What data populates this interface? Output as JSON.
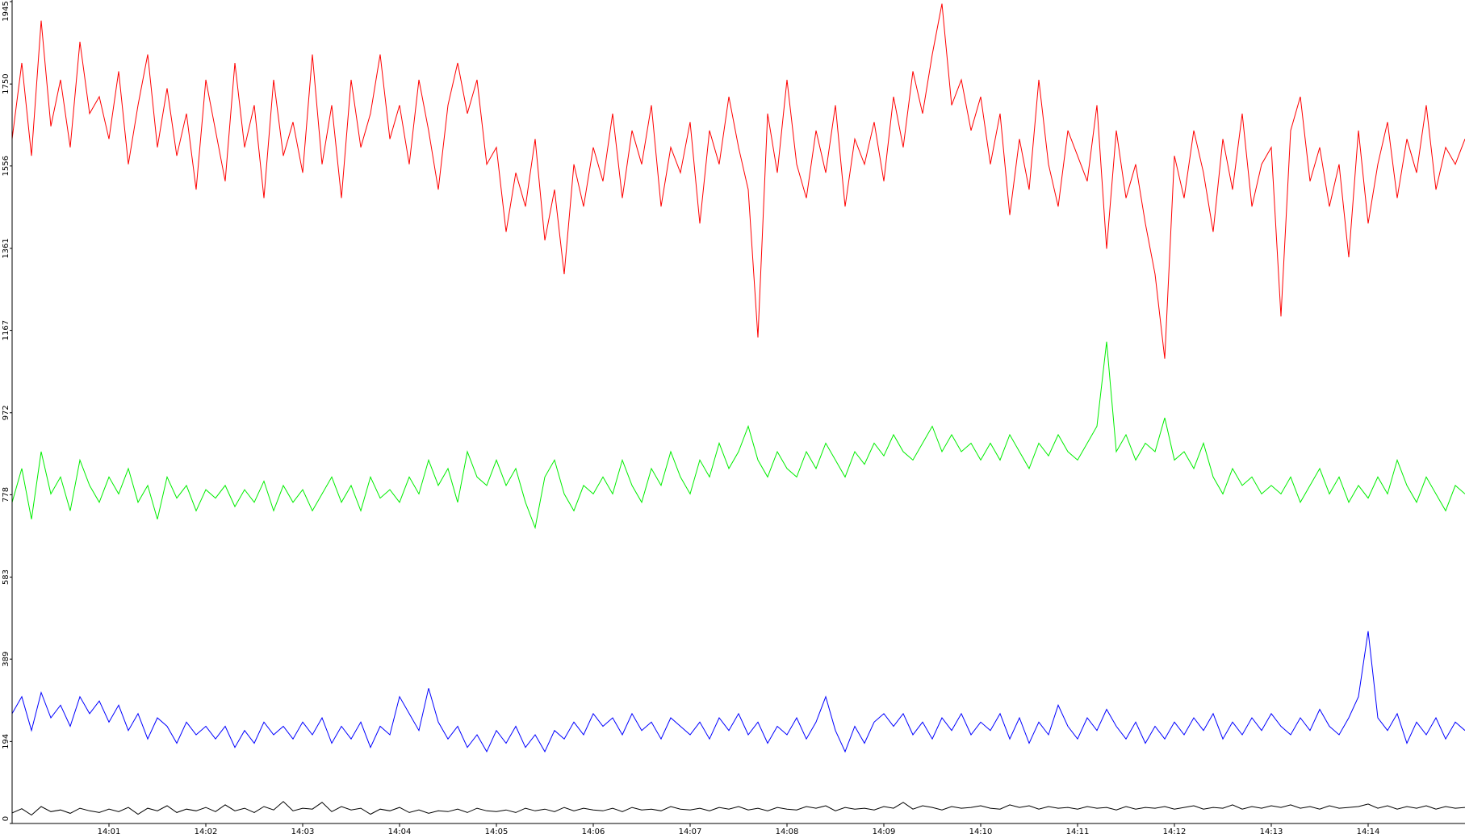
{
  "chart_data": {
    "type": "line",
    "x": [
      0,
      0.1,
      0.2,
      0.3,
      0.4,
      0.5,
      0.6,
      0.7,
      0.8,
      0.9,
      1,
      1.1,
      1.2,
      1.3,
      1.4,
      1.5,
      1.6,
      1.7,
      1.8,
      1.9,
      2,
      2.1,
      2.2,
      2.3,
      2.4,
      2.5,
      2.6,
      2.7,
      2.8,
      2.9,
      3,
      3.1,
      3.2,
      3.3,
      3.4,
      3.5,
      3.6,
      3.7,
      3.8,
      3.9,
      4,
      4.1,
      4.2,
      4.3,
      4.4,
      4.5,
      4.6,
      4.7,
      4.8,
      4.9,
      5,
      5.1,
      5.2,
      5.3,
      5.4,
      5.5,
      5.6,
      5.7,
      5.8,
      5.9,
      6,
      6.1,
      6.2,
      6.3,
      6.4,
      6.5,
      6.6,
      6.7,
      6.8,
      6.9,
      7,
      7.1,
      7.2,
      7.3,
      7.4,
      7.5,
      7.6,
      7.7,
      7.8,
      7.9,
      8,
      8.1,
      8.2,
      8.3,
      8.4,
      8.5,
      8.6,
      8.7,
      8.8,
      8.9,
      9,
      9.1,
      9.2,
      9.3,
      9.4,
      9.5,
      9.6,
      9.7,
      9.8,
      9.9,
      10,
      10.1,
      10.2,
      10.3,
      10.4,
      10.5,
      10.6,
      10.7,
      10.8,
      10.9,
      11,
      11.1,
      11.2,
      11.3,
      11.4,
      11.5,
      11.6,
      11.7,
      11.8,
      11.9,
      12,
      12.1,
      12.2,
      12.3,
      12.4,
      12.5,
      12.6,
      12.7,
      12.8,
      12.9,
      13,
      13.1,
      13.2,
      13.3,
      13.4,
      13.5,
      13.6,
      13.7,
      13.8,
      13.9,
      14,
      14.1,
      14.2,
      14.3,
      14.4,
      14.5,
      14.6,
      14.7,
      14.8,
      14.9,
      15
    ],
    "series": [
      {
        "color": "#ff0000",
        "values": [
          1620,
          1800,
          1580,
          1900,
          1650,
          1760,
          1600,
          1850,
          1680,
          1720,
          1620,
          1780,
          1560,
          1700,
          1820,
          1600,
          1740,
          1580,
          1680,
          1500,
          1760,
          1640,
          1520,
          1800,
          1600,
          1700,
          1480,
          1760,
          1580,
          1660,
          1540,
          1820,
          1560,
          1700,
          1480,
          1760,
          1600,
          1680,
          1820,
          1620,
          1700,
          1560,
          1760,
          1640,
          1500,
          1700,
          1800,
          1680,
          1760,
          1560,
          1600,
          1400,
          1540,
          1460,
          1620,
          1380,
          1500,
          1300,
          1560,
          1460,
          1600,
          1520,
          1680,
          1480,
          1640,
          1560,
          1700,
          1460,
          1600,
          1540,
          1660,
          1420,
          1640,
          1560,
          1720,
          1600,
          1500,
          1150,
          1680,
          1540,
          1760,
          1560,
          1480,
          1640,
          1540,
          1700,
          1460,
          1620,
          1560,
          1660,
          1520,
          1720,
          1600,
          1780,
          1680,
          1820,
          1940,
          1700,
          1760,
          1640,
          1720,
          1560,
          1680,
          1440,
          1620,
          1500,
          1760,
          1560,
          1460,
          1640,
          1580,
          1520,
          1700,
          1360,
          1640,
          1480,
          1560,
          1420,
          1300,
          1100,
          1580,
          1480,
          1640,
          1540,
          1400,
          1620,
          1500,
          1680,
          1460,
          1560,
          1600,
          1200,
          1640,
          1720,
          1520,
          1600,
          1460,
          1560,
          1340,
          1640,
          1420,
          1560,
          1660,
          1480,
          1620,
          1540,
          1700,
          1500,
          1600,
          1560,
          1620
        ]
      },
      {
        "color": "#00ee00",
        "values": [
          760,
          840,
          720,
          880,
          780,
          820,
          740,
          860,
          800,
          760,
          820,
          780,
          840,
          760,
          800,
          720,
          820,
          770,
          800,
          740,
          790,
          770,
          800,
          750,
          790,
          760,
          810,
          740,
          800,
          760,
          790,
          740,
          780,
          820,
          760,
          800,
          740,
          820,
          770,
          790,
          760,
          820,
          780,
          860,
          800,
          840,
          760,
          880,
          820,
          800,
          860,
          800,
          840,
          760,
          700,
          820,
          860,
          780,
          740,
          800,
          780,
          820,
          780,
          860,
          800,
          760,
          840,
          800,
          880,
          820,
          780,
          860,
          820,
          900,
          840,
          880,
          940,
          860,
          820,
          880,
          840,
          820,
          880,
          840,
          900,
          860,
          820,
          880,
          850,
          900,
          870,
          920,
          880,
          860,
          900,
          940,
          880,
          920,
          880,
          900,
          860,
          900,
          860,
          920,
          880,
          840,
          900,
          870,
          920,
          880,
          860,
          900,
          940,
          1140,
          880,
          920,
          860,
          900,
          880,
          960,
          860,
          880,
          840,
          900,
          820,
          780,
          840,
          800,
          820,
          780,
          800,
          780,
          820,
          760,
          800,
          840,
          780,
          820,
          760,
          800,
          770,
          820,
          780,
          860,
          800,
          760,
          820,
          780,
          740,
          800,
          780
        ]
      },
      {
        "color": "#0000ff",
        "values": [
          260,
          300,
          220,
          310,
          250,
          280,
          230,
          300,
          260,
          290,
          240,
          280,
          220,
          260,
          200,
          250,
          230,
          190,
          240,
          210,
          230,
          200,
          230,
          180,
          220,
          190,
          240,
          210,
          230,
          200,
          240,
          210,
          250,
          190,
          230,
          200,
          240,
          180,
          230,
          210,
          300,
          260,
          220,
          320,
          240,
          200,
          230,
          180,
          210,
          170,
          220,
          190,
          230,
          180,
          210,
          170,
          220,
          200,
          240,
          210,
          260,
          230,
          250,
          210,
          260,
          220,
          240,
          200,
          250,
          230,
          210,
          240,
          200,
          250,
          220,
          260,
          210,
          240,
          190,
          230,
          210,
          250,
          200,
          240,
          300,
          220,
          170,
          230,
          190,
          240,
          260,
          230,
          260,
          210,
          240,
          200,
          250,
          220,
          260,
          210,
          240,
          220,
          260,
          200,
          250,
          190,
          240,
          210,
          280,
          230,
          200,
          250,
          220,
          270,
          230,
          200,
          240,
          190,
          230,
          200,
          240,
          210,
          250,
          220,
          260,
          200,
          240,
          210,
          250,
          220,
          260,
          230,
          210,
          250,
          220,
          270,
          230,
          210,
          250,
          300,
          455,
          250,
          220,
          260,
          190,
          240,
          210,
          250,
          200,
          240,
          220
        ]
      },
      {
        "color": "#000000",
        "values": [
          25,
          35,
          20,
          40,
          28,
          32,
          24,
          36,
          30,
          26,
          34,
          28,
          38,
          22,
          36,
          30,
          42,
          26,
          34,
          30,
          38,
          28,
          44,
          30,
          36,
          26,
          40,
          32,
          52,
          30,
          36,
          34,
          50,
          28,
          40,
          32,
          36,
          22,
          34,
          30,
          38,
          26,
          32,
          24,
          30,
          28,
          34,
          26,
          36,
          30,
          28,
          32,
          26,
          36,
          30,
          34,
          28,
          38,
          30,
          36,
          32,
          30,
          36,
          28,
          38,
          32,
          34,
          30,
          40,
          34,
          32,
          36,
          30,
          38,
          34,
          40,
          32,
          36,
          30,
          38,
          34,
          32,
          40,
          36,
          42,
          30,
          38,
          34,
          36,
          32,
          40,
          36,
          50,
          34,
          42,
          38,
          32,
          40,
          36,
          38,
          42,
          36,
          34,
          44,
          38,
          42,
          34,
          40,
          36,
          38,
          34,
          40,
          36,
          38,
          32,
          40,
          34,
          38,
          36,
          40,
          34,
          38,
          42,
          34,
          38,
          36,
          44,
          34,
          40,
          36,
          42,
          38,
          44,
          36,
          40,
          34,
          42,
          36,
          38,
          40,
          46,
          36,
          42,
          34,
          40,
          36,
          42,
          34,
          40,
          36,
          38
        ]
      }
    ],
    "xlim": [
      0,
      15
    ],
    "xticks": [
      {
        "value": 1,
        "label": "14:01"
      },
      {
        "value": 2,
        "label": "14:02"
      },
      {
        "value": 3,
        "label": "14:03"
      },
      {
        "value": 4,
        "label": "14:04"
      },
      {
        "value": 5,
        "label": "14:05"
      },
      {
        "value": 6,
        "label": "14:06"
      },
      {
        "value": 7,
        "label": "14:07"
      },
      {
        "value": 8,
        "label": "14:08"
      },
      {
        "value": 9,
        "label": "14:09"
      },
      {
        "value": 10,
        "label": "14:10"
      },
      {
        "value": 11,
        "label": "14:11"
      },
      {
        "value": 12,
        "label": "14:12"
      },
      {
        "value": 13,
        "label": "14:13"
      },
      {
        "value": 14,
        "label": "14:14"
      }
    ],
    "ylim": [
      0,
      1945
    ],
    "yticks": [
      0,
      194,
      389,
      583,
      778,
      972,
      1167,
      1361,
      1556,
      1750,
      1945
    ]
  }
}
